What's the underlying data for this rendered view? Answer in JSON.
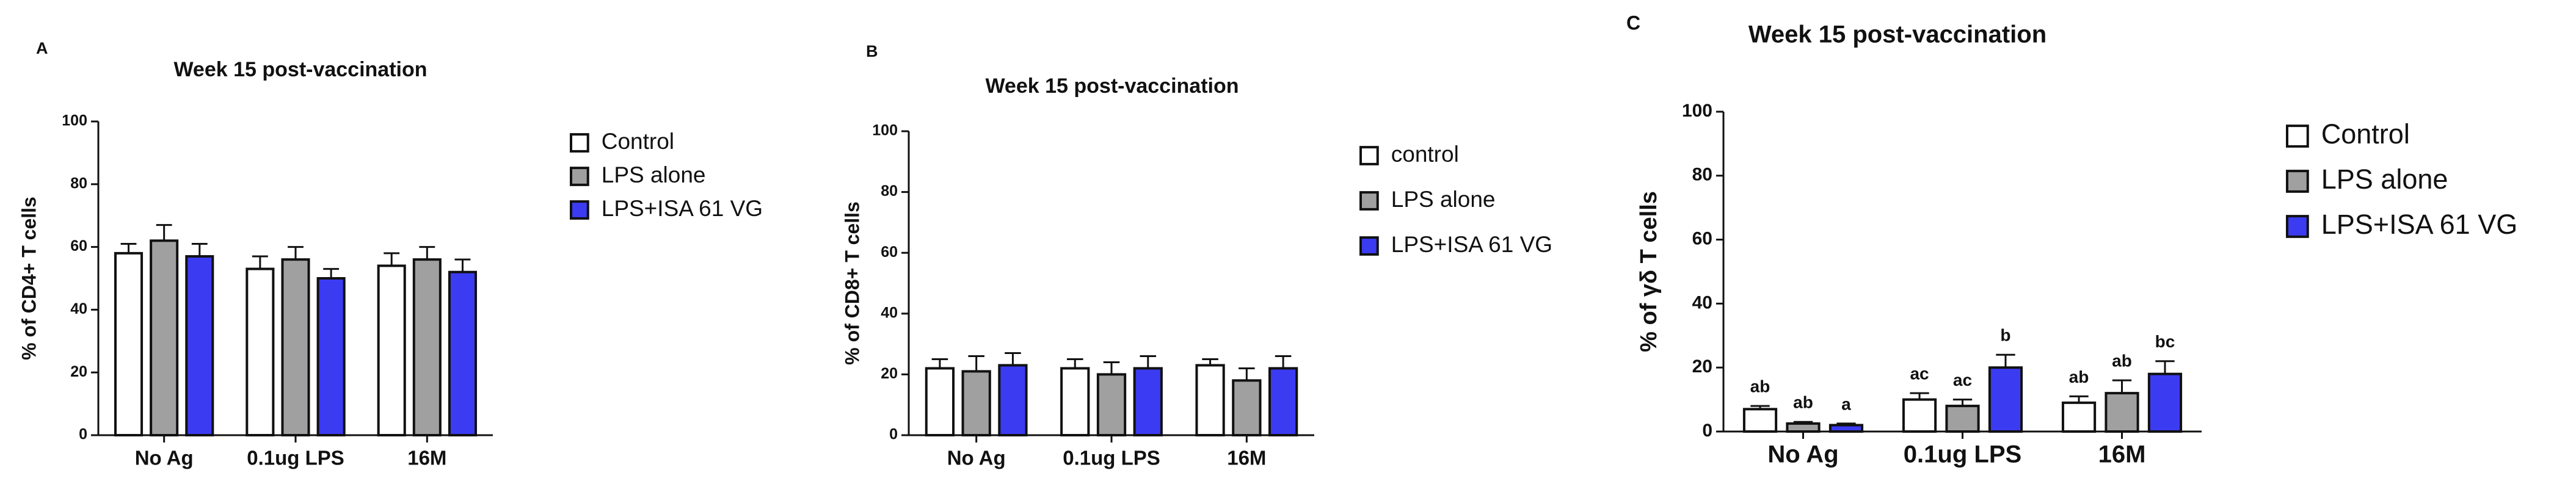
{
  "chart_data": [
    {
      "type": "bar",
      "panel_label": "A",
      "title": "Week 15 post-vaccination",
      "y_label": "% of CD4+ T cells",
      "categories": [
        "No Ag",
        "0.1ug LPS",
        "16M"
      ],
      "series": [
        {
          "name": "Control",
          "color": "#ffffff",
          "values": [
            58,
            53,
            54
          ],
          "errors": [
            3,
            4,
            4
          ]
        },
        {
          "name": "LPS alone",
          "color": "#a0a0a0",
          "values": [
            62,
            56,
            56
          ],
          "errors": [
            5,
            4,
            4
          ]
        },
        {
          "name": "LPS+ISA 61 VG",
          "color": "#3b3bf2",
          "values": [
            57,
            50,
            52
          ],
          "errors": [
            4,
            3,
            4
          ]
        }
      ],
      "ylim": [
        0,
        100
      ],
      "yticks": [
        0,
        20,
        40,
        60,
        80,
        100
      ]
    },
    {
      "type": "bar",
      "panel_label": "B",
      "title": "Week 15 post-vaccination",
      "y_label": "% of CD8+ T cells",
      "categories": [
        "No Ag",
        "0.1ug LPS",
        "16M"
      ],
      "series": [
        {
          "name": "control",
          "color": "#ffffff",
          "values": [
            22,
            22,
            23
          ],
          "errors": [
            3,
            3,
            2
          ]
        },
        {
          "name": "LPS alone",
          "color": "#a0a0a0",
          "values": [
            21,
            20,
            18
          ],
          "errors": [
            5,
            4,
            4
          ]
        },
        {
          "name": "LPS+ISA 61 VG",
          "color": "#3b3bf2",
          "values": [
            23,
            22,
            22
          ],
          "errors": [
            4,
            4,
            4
          ]
        }
      ],
      "ylim": [
        0,
        100
      ],
      "yticks": [
        0,
        20,
        40,
        60,
        80,
        100
      ]
    },
    {
      "type": "bar",
      "panel_label": "C",
      "title": "Week 15 post-vaccination",
      "y_label": "% of γδ T cells",
      "categories": [
        "No Ag",
        "0.1ug LPS",
        "16M"
      ],
      "series": [
        {
          "name": "Control",
          "color": "#ffffff",
          "values": [
            7,
            10,
            9
          ],
          "errors": [
            1,
            2,
            2
          ],
          "significance_letters": [
            "ab",
            "ac",
            "ab"
          ]
        },
        {
          "name": "LPS alone",
          "color": "#a0a0a0",
          "values": [
            2.5,
            8,
            12
          ],
          "errors": [
            0.5,
            2,
            4
          ],
          "significance_letters": [
            "ab",
            "ac",
            "ab"
          ]
        },
        {
          "name": "LPS+ISA 61 VG",
          "color": "#3b3bf2",
          "values": [
            2,
            20,
            18
          ],
          "errors": [
            0.5,
            4,
            4
          ],
          "significance_letters": [
            "a",
            "b",
            "bc"
          ]
        }
      ],
      "ylim": [
        0,
        100
      ],
      "yticks": [
        0,
        20,
        40,
        60,
        80,
        100
      ]
    }
  ]
}
